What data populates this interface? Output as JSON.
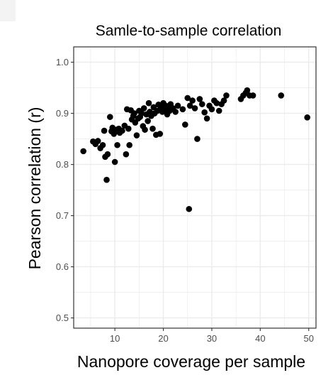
{
  "chart_data": {
    "type": "scatter",
    "title": "Samle-to-sample correlation",
    "xlabel": "Nanopore coverage per sample",
    "ylabel": "Pearson correlation (r)",
    "xlim": [
      1.5,
      51.5
    ],
    "ylim": [
      0.48,
      1.03
    ],
    "x_ticks": [
      10,
      20,
      30,
      40,
      50
    ],
    "y_ticks": [
      0.5,
      0.6,
      0.7,
      0.8,
      0.9,
      1.0
    ],
    "x_tick_labels": [
      "10",
      "20",
      "30",
      "40",
      "50"
    ],
    "y_tick_labels": [
      "0.5",
      "0.6",
      "0.7",
      "0.8",
      "0.9",
      "1.0"
    ],
    "grid": true,
    "point_color": "#000000",
    "grid_color": "#ebebeb",
    "points": [
      {
        "x": 3.5,
        "y": 0.826
      },
      {
        "x": 5.5,
        "y": 0.845
      },
      {
        "x": 6.0,
        "y": 0.84
      },
      {
        "x": 6.5,
        "y": 0.846
      },
      {
        "x": 7.0,
        "y": 0.832
      },
      {
        "x": 7.5,
        "y": 0.838
      },
      {
        "x": 7.8,
        "y": 0.866
      },
      {
        "x": 8.0,
        "y": 0.815
      },
      {
        "x": 8.3,
        "y": 0.77
      },
      {
        "x": 8.5,
        "y": 0.82
      },
      {
        "x": 9.0,
        "y": 0.893
      },
      {
        "x": 9.3,
        "y": 0.865
      },
      {
        "x": 9.5,
        "y": 0.872
      },
      {
        "x": 9.8,
        "y": 0.86
      },
      {
        "x": 10.0,
        "y": 0.805
      },
      {
        "x": 10.3,
        "y": 0.868
      },
      {
        "x": 10.5,
        "y": 0.838
      },
      {
        "x": 10.8,
        "y": 0.87
      },
      {
        "x": 11.0,
        "y": 0.862
      },
      {
        "x": 11.5,
        "y": 0.866
      },
      {
        "x": 12.0,
        "y": 0.876
      },
      {
        "x": 12.3,
        "y": 0.82
      },
      {
        "x": 12.5,
        "y": 0.908
      },
      {
        "x": 12.8,
        "y": 0.87
      },
      {
        "x": 13.0,
        "y": 0.838
      },
      {
        "x": 13.3,
        "y": 0.906
      },
      {
        "x": 13.5,
        "y": 0.888
      },
      {
        "x": 13.8,
        "y": 0.895
      },
      {
        "x": 14.0,
        "y": 0.9
      },
      {
        "x": 14.2,
        "y": 0.882
      },
      {
        "x": 14.5,
        "y": 0.857
      },
      {
        "x": 14.8,
        "y": 0.89
      },
      {
        "x": 15.0,
        "y": 0.905
      },
      {
        "x": 15.2,
        "y": 0.893
      },
      {
        "x": 15.5,
        "y": 0.9
      },
      {
        "x": 15.8,
        "y": 0.875
      },
      {
        "x": 16.0,
        "y": 0.91
      },
      {
        "x": 16.2,
        "y": 0.868
      },
      {
        "x": 16.5,
        "y": 0.898
      },
      {
        "x": 16.8,
        "y": 0.885
      },
      {
        "x": 17.0,
        "y": 0.92
      },
      {
        "x": 17.2,
        "y": 0.903
      },
      {
        "x": 17.5,
        "y": 0.895
      },
      {
        "x": 17.8,
        "y": 0.87
      },
      {
        "x": 18.0,
        "y": 0.912
      },
      {
        "x": 18.2,
        "y": 0.9
      },
      {
        "x": 18.5,
        "y": 0.858
      },
      {
        "x": 18.8,
        "y": 0.905
      },
      {
        "x": 19.0,
        "y": 0.917
      },
      {
        "x": 19.3,
        "y": 0.86
      },
      {
        "x": 19.5,
        "y": 0.91
      },
      {
        "x": 19.8,
        "y": 0.903
      },
      {
        "x": 20.0,
        "y": 0.92
      },
      {
        "x": 20.3,
        "y": 0.907
      },
      {
        "x": 20.5,
        "y": 0.915
      },
      {
        "x": 20.8,
        "y": 0.898
      },
      {
        "x": 21.0,
        "y": 0.912
      },
      {
        "x": 21.3,
        "y": 0.905
      },
      {
        "x": 21.5,
        "y": 0.918
      },
      {
        "x": 22.0,
        "y": 0.91
      },
      {
        "x": 22.5,
        "y": 0.903
      },
      {
        "x": 23.0,
        "y": 0.915
      },
      {
        "x": 24.0,
        "y": 0.908
      },
      {
        "x": 24.5,
        "y": 0.878
      },
      {
        "x": 25.0,
        "y": 0.93
      },
      {
        "x": 25.3,
        "y": 0.713
      },
      {
        "x": 25.5,
        "y": 0.915
      },
      {
        "x": 26.0,
        "y": 0.925
      },
      {
        "x": 26.5,
        "y": 0.91
      },
      {
        "x": 27.0,
        "y": 0.85
      },
      {
        "x": 27.5,
        "y": 0.928
      },
      {
        "x": 28.0,
        "y": 0.918
      },
      {
        "x": 28.5,
        "y": 0.902
      },
      {
        "x": 29.0,
        "y": 0.89
      },
      {
        "x": 29.5,
        "y": 0.915
      },
      {
        "x": 30.0,
        "y": 0.908
      },
      {
        "x": 30.5,
        "y": 0.925
      },
      {
        "x": 31.0,
        "y": 0.92
      },
      {
        "x": 31.5,
        "y": 0.905
      },
      {
        "x": 32.0,
        "y": 0.918
      },
      {
        "x": 32.5,
        "y": 0.925
      },
      {
        "x": 33.0,
        "y": 0.935
      },
      {
        "x": 36.0,
        "y": 0.928
      },
      {
        "x": 36.5,
        "y": 0.935
      },
      {
        "x": 37.0,
        "y": 0.94
      },
      {
        "x": 37.3,
        "y": 0.945
      },
      {
        "x": 37.8,
        "y": 0.935
      },
      {
        "x": 38.5,
        "y": 0.935
      },
      {
        "x": 44.3,
        "y": 0.935
      },
      {
        "x": 49.7,
        "y": 0.892
      }
    ]
  }
}
